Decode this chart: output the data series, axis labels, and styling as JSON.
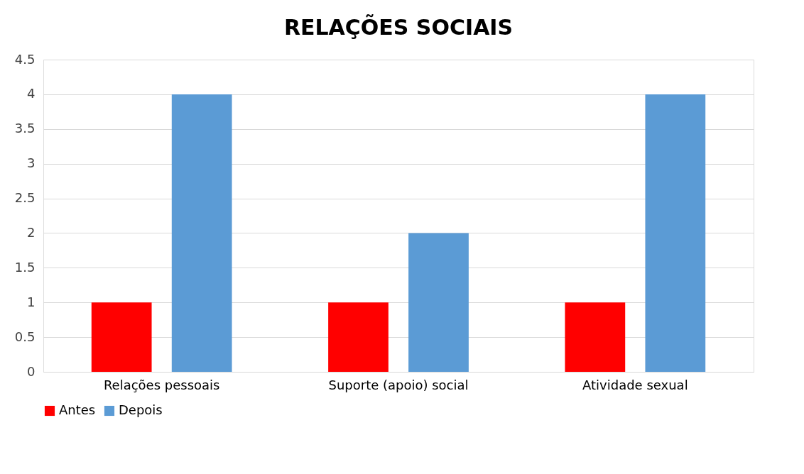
{
  "chart_data": {
    "type": "bar",
    "title": "RELAÇÕES SOCIAIS",
    "categories": [
      "Relações pessoais",
      "Suporte (apoio) social",
      "Atividade sexual"
    ],
    "series": [
      {
        "name": "Antes",
        "color": "#ff0000",
        "values": [
          1,
          1,
          1
        ]
      },
      {
        "name": "Depois",
        "color": "#5b9bd5",
        "values": [
          4,
          2,
          4
        ]
      }
    ],
    "ylim": [
      0,
      4.5
    ],
    "yticks": [
      0,
      0.5,
      1,
      1.5,
      2,
      2.5,
      3,
      3.5,
      4,
      4.5
    ],
    "grid": "y",
    "legend": "bottom"
  }
}
